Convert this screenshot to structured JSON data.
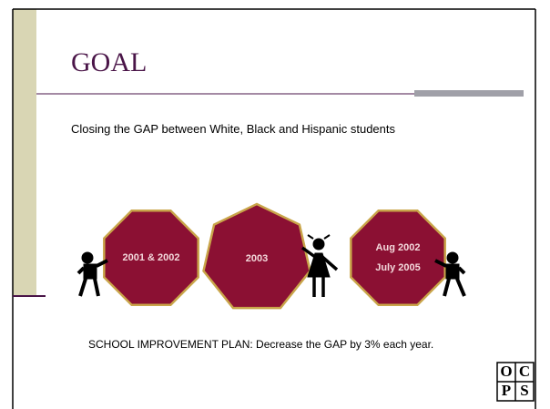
{
  "slide": {
    "title": "GOAL",
    "subtitle": "Closing the GAP between White, Black and Hispanic students",
    "signs": [
      {
        "lines": [
          "2001 & 2002"
        ]
      },
      {
        "lines": [
          "2003"
        ]
      },
      {
        "lines": [
          "Aug 2002",
          "July 2005"
        ]
      }
    ],
    "plan": "SCHOOL IMPROVEMENT PLAN: Decrease the GAP by 3% each year.",
    "logo": [
      "O",
      "C",
      "P",
      "S"
    ]
  }
}
